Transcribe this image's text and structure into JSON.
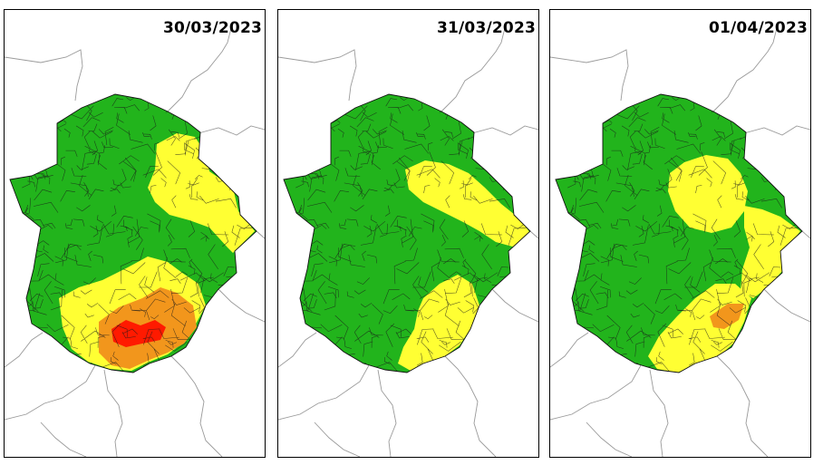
{
  "levels": {
    "green": "#22b41c",
    "yellow": "#ffff33",
    "orange": "#f2961c",
    "red": "#ff1a00"
  },
  "panels": [
    {
      "date": "30/03/2023",
      "dominant_level": "green",
      "zones": [
        {
          "level": "yellow",
          "area": "north-east"
        },
        {
          "level": "yellow",
          "area": "south"
        },
        {
          "level": "orange",
          "area": "south"
        },
        {
          "level": "red",
          "area": "south"
        }
      ]
    },
    {
      "date": "31/03/2023",
      "dominant_level": "green",
      "zones": [
        {
          "level": "yellow",
          "area": "north-east"
        },
        {
          "level": "yellow",
          "area": "south-east"
        }
      ]
    },
    {
      "date": "01/04/2023",
      "dominant_level": "green",
      "zones": [
        {
          "level": "yellow",
          "area": "north-east"
        },
        {
          "level": "yellow",
          "area": "east"
        },
        {
          "level": "yellow",
          "area": "south-east"
        },
        {
          "level": "orange",
          "area": "south-east"
        }
      ]
    }
  ]
}
